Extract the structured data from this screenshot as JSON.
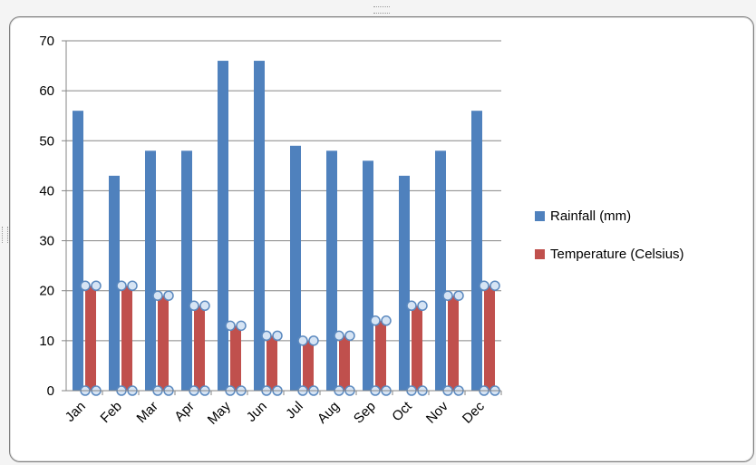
{
  "chart_data": {
    "type": "bar",
    "categories": [
      "Jan",
      "Feb",
      "Mar",
      "Apr",
      "May",
      "Jun",
      "Jul",
      "Aug",
      "Sep",
      "Oct",
      "Nov",
      "Dec"
    ],
    "series": [
      {
        "name": "Rainfall (mm)",
        "color": "#4f81bd",
        "values": [
          56,
          43,
          48,
          48,
          66,
          66,
          49,
          48,
          46,
          43,
          48,
          56
        ]
      },
      {
        "name": "Temperature (Celsius)",
        "color": "#c0504d",
        "values": [
          21,
          21,
          19,
          17,
          13,
          11,
          10,
          11,
          14,
          17,
          19,
          21
        ]
      }
    ],
    "ylim": [
      0,
      70
    ],
    "yticks": [
      0,
      10,
      20,
      30,
      40,
      50,
      60,
      70
    ],
    "grid": true,
    "legend_position": "right",
    "marker_note": "Temperature bars have circular markers at their top and bottom."
  }
}
